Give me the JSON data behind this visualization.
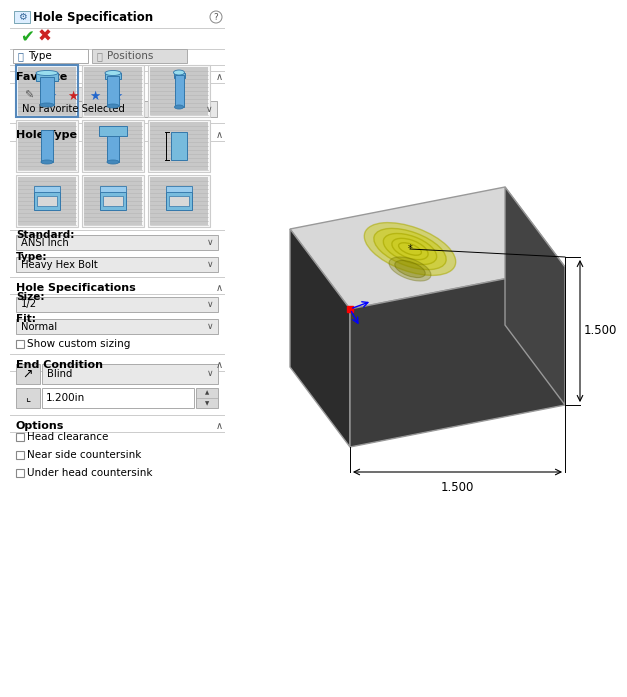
{
  "title": "Hole Specification",
  "panel_bg": "#f0f0f0",
  "sections": [
    "Favorite",
    "Hole Type",
    "Hole Specifications",
    "End Condition",
    "Options"
  ],
  "standard_label": "Standard:",
  "standard_value": "ANSI Inch",
  "type_label": "Type:",
  "type_value": "Heavy Hex Bolt",
  "size_label": "Size:",
  "size_value": "1/2",
  "fit_label": "Fit:",
  "fit_value": "Normal",
  "show_custom": "Show custom sizing",
  "end_cond_value": "Blind",
  "depth_value": "1.200in",
  "options_items": [
    "Head clearance",
    "Near side countersink",
    "Under head countersink"
  ],
  "dim1": "1.500",
  "dim2": "1.500",
  "tab_active": "Type",
  "tab_inactive": "Positions",
  "no_fav": "No Favorite Selected"
}
